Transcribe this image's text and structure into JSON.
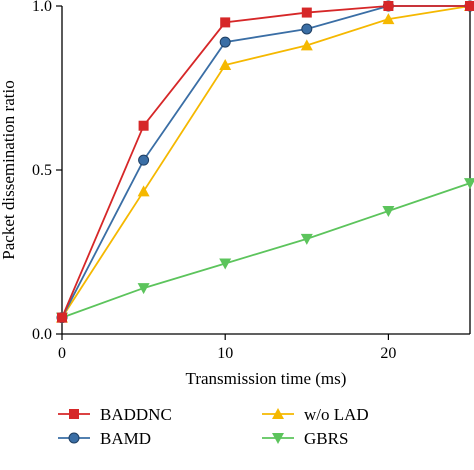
{
  "chart_data": {
    "type": "line",
    "xlabel": "Transmission time (ms)",
    "ylabel": "Packet dissemination ratio",
    "xlim": [
      0,
      25
    ],
    "ylim": [
      0,
      1
    ],
    "x_ticks": [
      0,
      10,
      20
    ],
    "y_ticks": [
      0.0,
      0.5,
      1.0
    ],
    "y_tick_labels": [
      "0.0",
      "0.5",
      "1.0"
    ],
    "x_tick_labels": [
      "0",
      "10",
      "20"
    ],
    "grid": false,
    "legend_position": "bottom",
    "series": [
      {
        "name": "BADDNC",
        "color": "#d62728",
        "marker": "square",
        "x": [
          0,
          5,
          10,
          15,
          20,
          25
        ],
        "y": [
          0.05,
          0.635,
          0.95,
          0.98,
          1.0,
          1.0
        ]
      },
      {
        "name": "BAMD",
        "color": "#3a6ea5",
        "marker": "circle",
        "x": [
          0,
          5,
          10,
          15,
          20,
          25
        ],
        "y": [
          0.05,
          0.53,
          0.89,
          0.93,
          1.0,
          1.0
        ]
      },
      {
        "name": "w/o LAD",
        "color": "#f5b800",
        "marker": "triangle-up",
        "x": [
          0,
          5,
          10,
          15,
          20,
          25
        ],
        "y": [
          0.05,
          0.435,
          0.82,
          0.88,
          0.96,
          1.0
        ]
      },
      {
        "name": "GBRS",
        "color": "#5cc45c",
        "marker": "triangle-down",
        "x": [
          0,
          5,
          10,
          15,
          20,
          25
        ],
        "y": [
          0.05,
          0.14,
          0.215,
          0.29,
          0.375,
          0.46
        ]
      }
    ]
  }
}
